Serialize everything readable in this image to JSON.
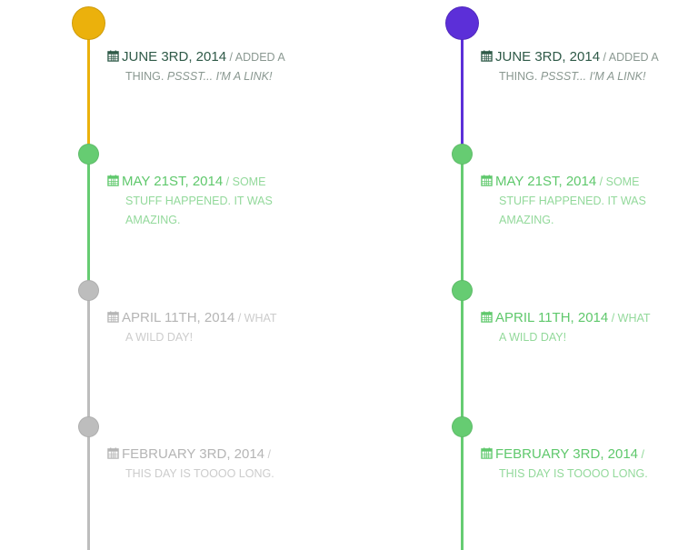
{
  "colors": {
    "gold": "#ebb10c",
    "purple": "#5c2fd8",
    "green": "#66cc72",
    "gray": "#bdbdbd",
    "dark_text": "#2f5a48",
    "muted_dark": "#8a9891",
    "green_text": "#5fc86c",
    "green_muted": "#93d99b",
    "gray_text": "#b5b5b5",
    "gray_muted": "#cccccc"
  },
  "timelines": [
    {
      "entries": [
        {
          "date": "June 3rd, 2014",
          "text_start": "/ Added a",
          "text_rest": "thing.",
          "link": "Pssst... I'm a link!",
          "state": "dark"
        },
        {
          "date": "May 21st, 2014",
          "text_start": "/ Some",
          "text_rest": "stuff happened. It was amazing.",
          "link": "",
          "state": "green"
        },
        {
          "date": "April 11th, 2014",
          "text_start": "/ What",
          "text_rest": "a wild day!",
          "link": "",
          "state": "gray"
        },
        {
          "date": "February 3rd, 2014",
          "text_start": "/",
          "text_rest": "This day is toooo long.",
          "link": "",
          "state": "gray"
        }
      ]
    },
    {
      "entries": [
        {
          "date": "June 3rd, 2014",
          "text_start": "/ Added a",
          "text_rest": "thing.",
          "link": "Pssst... I'm a link!",
          "state": "dark"
        },
        {
          "date": "May 21st, 2014",
          "text_start": "/ Some",
          "text_rest": "stuff happened. It was amazing.",
          "link": "",
          "state": "green"
        },
        {
          "date": "April 11th, 2014",
          "text_start": "/ What",
          "text_rest": "a wild day!",
          "link": "",
          "state": "green"
        },
        {
          "date": "February 3rd, 2014",
          "text_start": "/",
          "text_rest": "This day is toooo long.",
          "link": "",
          "state": "green"
        }
      ]
    }
  ]
}
